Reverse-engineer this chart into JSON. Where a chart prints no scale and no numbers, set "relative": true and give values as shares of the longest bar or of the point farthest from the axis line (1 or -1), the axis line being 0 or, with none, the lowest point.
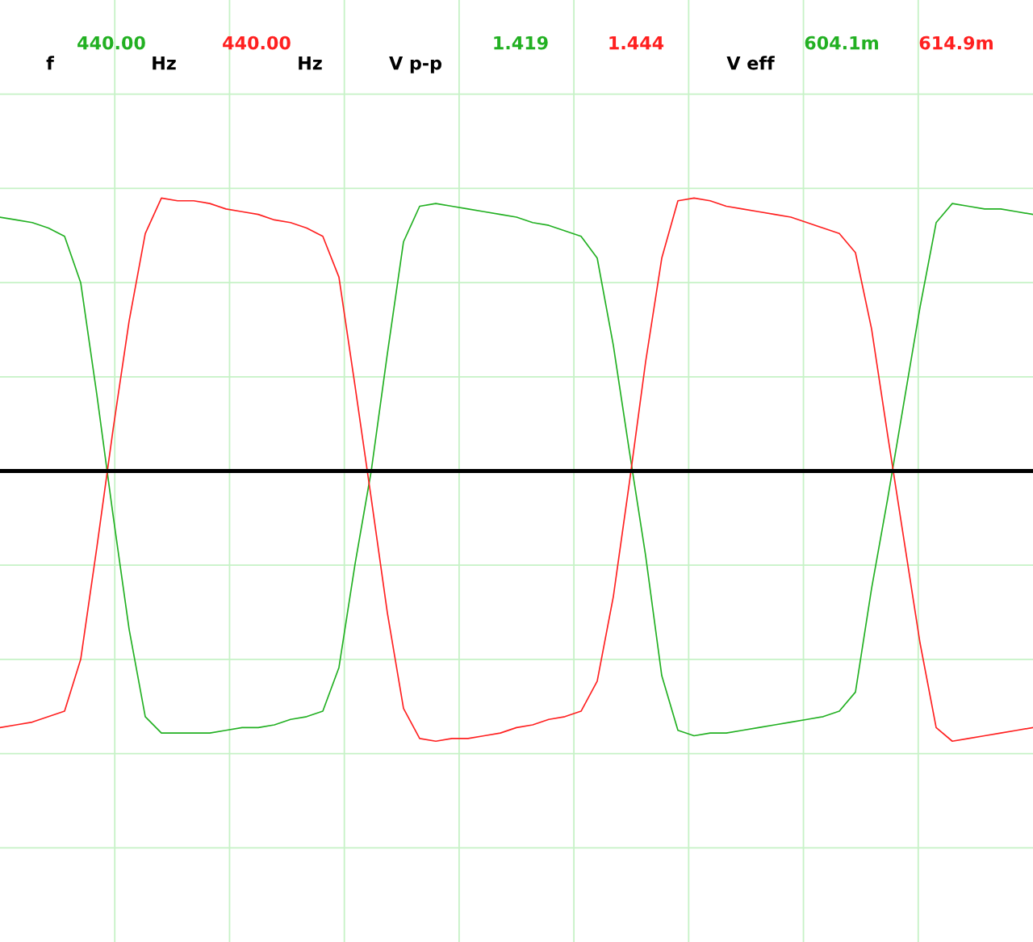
{
  "chart_data": {
    "type": "line",
    "relative": true,
    "grid": true,
    "legend": false,
    "marker": "none",
    "line_style": "solid",
    "categories": [
      null,
      null,
      null,
      null,
      null,
      null,
      null,
      null,
      null,
      null,
      null,
      null,
      null,
      null,
      null,
      null,
      null,
      null,
      null,
      null,
      null,
      null,
      null,
      null,
      null,
      null,
      null,
      null,
      null,
      null,
      null,
      null,
      null,
      null,
      null,
      null,
      null,
      null,
      null,
      null,
      null,
      null,
      null,
      null,
      null,
      null,
      null,
      null,
      null,
      null,
      null,
      null,
      null,
      null,
      null,
      null,
      null,
      null,
      null,
      null,
      null,
      null,
      null,
      null,
      null
    ],
    "series": [
      {
        "color": "#22b022",
        "values": [
          0.93,
          0.92,
          0.91,
          0.89,
          0.86,
          0.69,
          0.28,
          -0.16,
          -0.58,
          -0.9,
          -0.96,
          -0.96,
          -0.96,
          -0.96,
          -0.95,
          -0.94,
          -0.94,
          -0.93,
          -0.91,
          -0.9,
          -0.88,
          -0.72,
          -0.34,
          0,
          0.43,
          0.84,
          0.97,
          0.98,
          0.97,
          0.96,
          0.95,
          0.94,
          0.93,
          0.91,
          0.9,
          0.88,
          0.86,
          0.78,
          0.46,
          0.07,
          -0.31,
          -0.75,
          -0.95,
          -0.97,
          -0.96,
          -0.96,
          -0.95,
          -0.94,
          -0.93,
          -0.92,
          -0.91,
          -0.9,
          -0.88,
          -0.81,
          -0.43,
          -0.1,
          0.25,
          0.6,
          0.91,
          0.98,
          0.97,
          0.96,
          0.96,
          0.95,
          0.94
        ]
      },
      {
        "color": "#ff2020",
        "values": [
          -0.94,
          -0.93,
          -0.92,
          -0.9,
          -0.88,
          -0.69,
          -0.28,
          0.15,
          0.55,
          0.87,
          1.0,
          0.99,
          0.99,
          0.98,
          0.96,
          0.95,
          0.94,
          0.92,
          0.91,
          0.89,
          0.86,
          0.71,
          0.31,
          -0.1,
          -0.52,
          -0.87,
          -0.98,
          -0.99,
          -0.98,
          -0.98,
          -0.97,
          -0.96,
          -0.94,
          -0.93,
          -0.91,
          -0.9,
          -0.88,
          -0.77,
          -0.46,
          -0.04,
          0.4,
          0.78,
          0.99,
          1.0,
          0.99,
          0.97,
          0.96,
          0.95,
          0.94,
          0.93,
          0.91,
          0.89,
          0.87,
          0.8,
          0.52,
          0.13,
          -0.25,
          -0.63,
          -0.94,
          -0.99,
          -0.98,
          -0.97,
          -0.96,
          -0.95,
          -0.94
        ]
      }
    ],
    "annotations": [
      "f",
      "440.00",
      "Hz",
      "440.00",
      "Hz",
      "V p-p",
      "1.419",
      "1.444",
      "V eff",
      "604.1m",
      "614.9m"
    ]
  }
}
